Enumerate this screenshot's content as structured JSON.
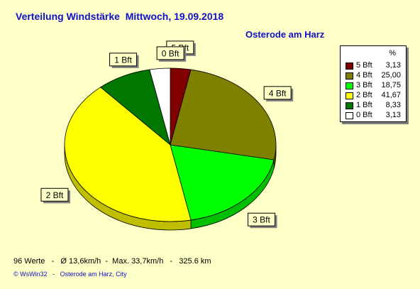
{
  "title": "Verteilung Windstärke  Mittwoch, 19.09.2018",
  "location": "Osterode am Harz",
  "stats": "96 Werte   -   Ø 13,6km/h  -  Max. 33,7km/h   -   325.6 km",
  "copyright": "© WsWin32   -   Osterode am Harz, City",
  "legend_header": "%",
  "colors": {
    "background": "#FFFFC8",
    "title": "#1010C8"
  },
  "chart_data": {
    "type": "pie",
    "title": "Verteilung Windstärke  Mittwoch, 19.09.2018",
    "slices": [
      {
        "label": "5 Bft",
        "value": 3.13,
        "display": "3,13",
        "color": "#800000"
      },
      {
        "label": "4 Bft",
        "value": 25.0,
        "display": "25,00",
        "color": "#808000"
      },
      {
        "label": "3 Bft",
        "value": 18.75,
        "display": "18,75",
        "color": "#00FF00"
      },
      {
        "label": "2 Bft",
        "value": 41.67,
        "display": "41,67",
        "color": "#FFFF00"
      },
      {
        "label": "1 Bft",
        "value": 8.33,
        "display": "8,33",
        "color": "#007800"
      },
      {
        "label": "0 Bft",
        "value": 3.13,
        "display": "3,13",
        "color": "#FFFFFF"
      }
    ],
    "legend_position": "right",
    "three_d": true
  }
}
